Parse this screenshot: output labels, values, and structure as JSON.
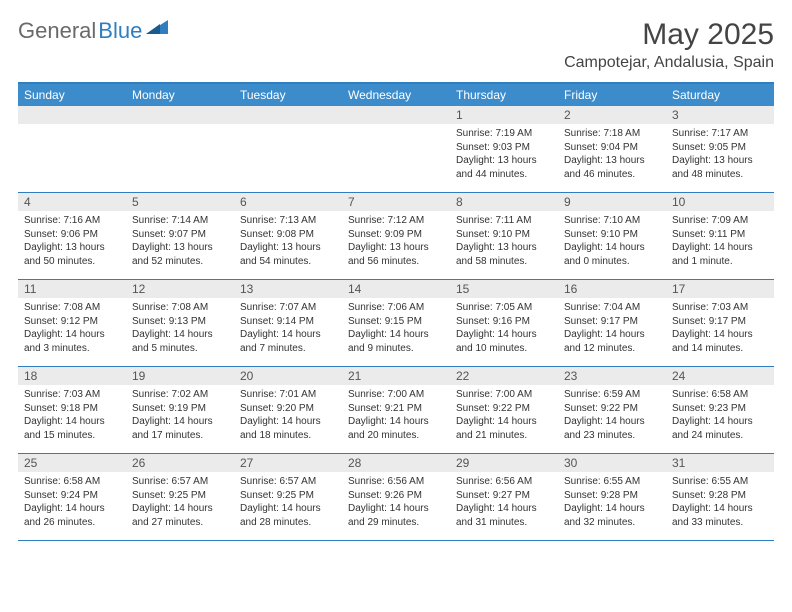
{
  "logo": {
    "text1": "General",
    "text2": "Blue"
  },
  "title": "May 2025",
  "location": "Campotejar, Andalusia, Spain",
  "colors": {
    "header_bg": "#3c8ccc",
    "border": "#2f7fc0",
    "daynum_bg": "#ebebeb",
    "text": "#333333"
  },
  "day_names": [
    "Sunday",
    "Monday",
    "Tuesday",
    "Wednesday",
    "Thursday",
    "Friday",
    "Saturday"
  ],
  "weeks": [
    [
      {
        "blank": true
      },
      {
        "blank": true
      },
      {
        "blank": true
      },
      {
        "blank": true
      },
      {
        "num": "1",
        "sunrise": "Sunrise: 7:19 AM",
        "sunset": "Sunset: 9:03 PM",
        "daylight": "Daylight: 13 hours and 44 minutes."
      },
      {
        "num": "2",
        "sunrise": "Sunrise: 7:18 AM",
        "sunset": "Sunset: 9:04 PM",
        "daylight": "Daylight: 13 hours and 46 minutes."
      },
      {
        "num": "3",
        "sunrise": "Sunrise: 7:17 AM",
        "sunset": "Sunset: 9:05 PM",
        "daylight": "Daylight: 13 hours and 48 minutes."
      }
    ],
    [
      {
        "num": "4",
        "sunrise": "Sunrise: 7:16 AM",
        "sunset": "Sunset: 9:06 PM",
        "daylight": "Daylight: 13 hours and 50 minutes."
      },
      {
        "num": "5",
        "sunrise": "Sunrise: 7:14 AM",
        "sunset": "Sunset: 9:07 PM",
        "daylight": "Daylight: 13 hours and 52 minutes."
      },
      {
        "num": "6",
        "sunrise": "Sunrise: 7:13 AM",
        "sunset": "Sunset: 9:08 PM",
        "daylight": "Daylight: 13 hours and 54 minutes."
      },
      {
        "num": "7",
        "sunrise": "Sunrise: 7:12 AM",
        "sunset": "Sunset: 9:09 PM",
        "daylight": "Daylight: 13 hours and 56 minutes."
      },
      {
        "num": "8",
        "sunrise": "Sunrise: 7:11 AM",
        "sunset": "Sunset: 9:10 PM",
        "daylight": "Daylight: 13 hours and 58 minutes."
      },
      {
        "num": "9",
        "sunrise": "Sunrise: 7:10 AM",
        "sunset": "Sunset: 9:10 PM",
        "daylight": "Daylight: 14 hours and 0 minutes."
      },
      {
        "num": "10",
        "sunrise": "Sunrise: 7:09 AM",
        "sunset": "Sunset: 9:11 PM",
        "daylight": "Daylight: 14 hours and 1 minute."
      }
    ],
    [
      {
        "num": "11",
        "sunrise": "Sunrise: 7:08 AM",
        "sunset": "Sunset: 9:12 PM",
        "daylight": "Daylight: 14 hours and 3 minutes."
      },
      {
        "num": "12",
        "sunrise": "Sunrise: 7:08 AM",
        "sunset": "Sunset: 9:13 PM",
        "daylight": "Daylight: 14 hours and 5 minutes."
      },
      {
        "num": "13",
        "sunrise": "Sunrise: 7:07 AM",
        "sunset": "Sunset: 9:14 PM",
        "daylight": "Daylight: 14 hours and 7 minutes."
      },
      {
        "num": "14",
        "sunrise": "Sunrise: 7:06 AM",
        "sunset": "Sunset: 9:15 PM",
        "daylight": "Daylight: 14 hours and 9 minutes."
      },
      {
        "num": "15",
        "sunrise": "Sunrise: 7:05 AM",
        "sunset": "Sunset: 9:16 PM",
        "daylight": "Daylight: 14 hours and 10 minutes."
      },
      {
        "num": "16",
        "sunrise": "Sunrise: 7:04 AM",
        "sunset": "Sunset: 9:17 PM",
        "daylight": "Daylight: 14 hours and 12 minutes."
      },
      {
        "num": "17",
        "sunrise": "Sunrise: 7:03 AM",
        "sunset": "Sunset: 9:17 PM",
        "daylight": "Daylight: 14 hours and 14 minutes."
      }
    ],
    [
      {
        "num": "18",
        "sunrise": "Sunrise: 7:03 AM",
        "sunset": "Sunset: 9:18 PM",
        "daylight": "Daylight: 14 hours and 15 minutes."
      },
      {
        "num": "19",
        "sunrise": "Sunrise: 7:02 AM",
        "sunset": "Sunset: 9:19 PM",
        "daylight": "Daylight: 14 hours and 17 minutes."
      },
      {
        "num": "20",
        "sunrise": "Sunrise: 7:01 AM",
        "sunset": "Sunset: 9:20 PM",
        "daylight": "Daylight: 14 hours and 18 minutes."
      },
      {
        "num": "21",
        "sunrise": "Sunrise: 7:00 AM",
        "sunset": "Sunset: 9:21 PM",
        "daylight": "Daylight: 14 hours and 20 minutes."
      },
      {
        "num": "22",
        "sunrise": "Sunrise: 7:00 AM",
        "sunset": "Sunset: 9:22 PM",
        "daylight": "Daylight: 14 hours and 21 minutes."
      },
      {
        "num": "23",
        "sunrise": "Sunrise: 6:59 AM",
        "sunset": "Sunset: 9:22 PM",
        "daylight": "Daylight: 14 hours and 23 minutes."
      },
      {
        "num": "24",
        "sunrise": "Sunrise: 6:58 AM",
        "sunset": "Sunset: 9:23 PM",
        "daylight": "Daylight: 14 hours and 24 minutes."
      }
    ],
    [
      {
        "num": "25",
        "sunrise": "Sunrise: 6:58 AM",
        "sunset": "Sunset: 9:24 PM",
        "daylight": "Daylight: 14 hours and 26 minutes."
      },
      {
        "num": "26",
        "sunrise": "Sunrise: 6:57 AM",
        "sunset": "Sunset: 9:25 PM",
        "daylight": "Daylight: 14 hours and 27 minutes."
      },
      {
        "num": "27",
        "sunrise": "Sunrise: 6:57 AM",
        "sunset": "Sunset: 9:25 PM",
        "daylight": "Daylight: 14 hours and 28 minutes."
      },
      {
        "num": "28",
        "sunrise": "Sunrise: 6:56 AM",
        "sunset": "Sunset: 9:26 PM",
        "daylight": "Daylight: 14 hours and 29 minutes."
      },
      {
        "num": "29",
        "sunrise": "Sunrise: 6:56 AM",
        "sunset": "Sunset: 9:27 PM",
        "daylight": "Daylight: 14 hours and 31 minutes."
      },
      {
        "num": "30",
        "sunrise": "Sunrise: 6:55 AM",
        "sunset": "Sunset: 9:28 PM",
        "daylight": "Daylight: 14 hours and 32 minutes."
      },
      {
        "num": "31",
        "sunrise": "Sunrise: 6:55 AM",
        "sunset": "Sunset: 9:28 PM",
        "daylight": "Daylight: 14 hours and 33 minutes."
      }
    ]
  ]
}
